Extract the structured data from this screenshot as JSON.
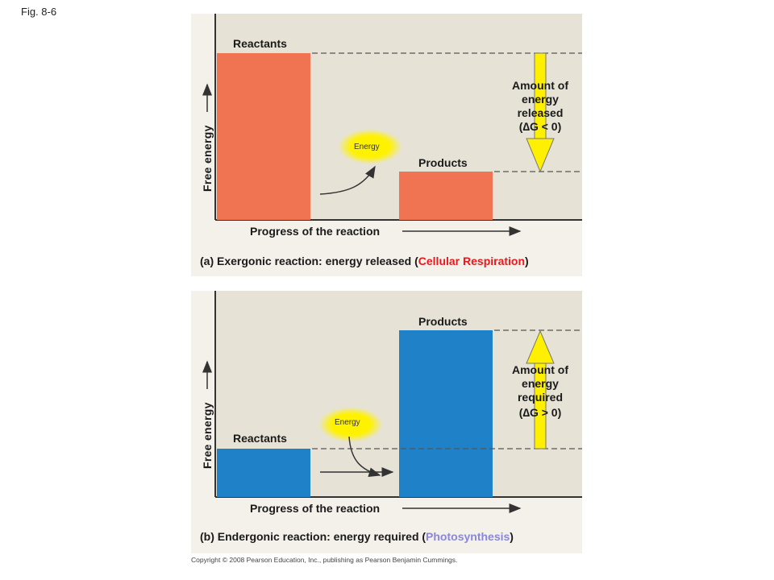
{
  "fig_label": "Fig. 8-6",
  "panel_a": {
    "reactants_label": "Reactants",
    "products_label": "Products",
    "energy_label": "Energy",
    "delta_text": [
      "Amount of",
      "energy",
      "released",
      "(∆G < 0)"
    ],
    "y_axis_label": "Free energy",
    "x_axis_label": "Progress of the reaction",
    "caption_prefix": "(a) Exergonic reaction: energy released (",
    "caption_highlight": "Cellular Respiration",
    "caption_suffix": ")",
    "bar_color": "#f07352",
    "highlight_color": "#e8181c"
  },
  "panel_b": {
    "reactants_label": "Reactants",
    "products_label": "Products",
    "energy_label": "Energy",
    "delta_text": [
      "Amount of",
      "energy",
      "required",
      "(∆G > 0)"
    ],
    "y_axis_label": "Free energy",
    "x_axis_label": "Progress of the reaction",
    "caption_prefix": "(b) Endergonic reaction: energy required (",
    "caption_highlight": "Photosynthesis",
    "caption_suffix": ")",
    "bar_color": "#1f82c8",
    "highlight_color": "#8a86d8"
  },
  "copyright": "Copyright © 2008 Pearson Education, Inc., publishing as Pearson Benjamin Cummings.",
  "colors": {
    "plot_bg": "#e6e3d6",
    "panel_bg": "#f3f1ea",
    "arrow_yellow": "#ffef00",
    "energy_glow": "#fff200"
  }
}
